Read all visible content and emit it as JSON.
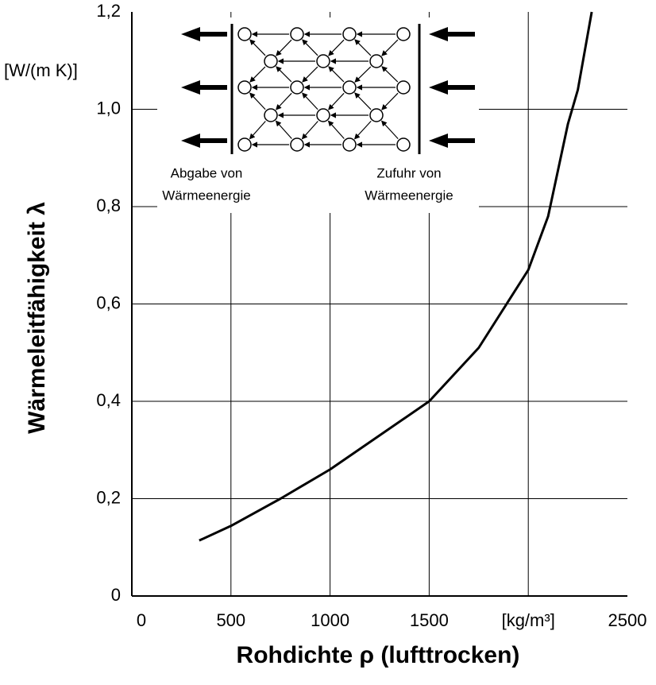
{
  "chart_data": {
    "type": "line",
    "x_label": "Rohdichte ρ (lufttrocken)",
    "y_label": "Wärmeleitfähigkeit λ",
    "y_unit": "[W/(m K)]",
    "annotations": [
      "Abgabe von",
      "Wärmeenergie",
      "Zufuhr von",
      "Wärmeenergie"
    ],
    "x": [
      340,
      500,
      750,
      1000,
      1250,
      1500,
      1750,
      2000,
      2100,
      2200,
      2250,
      2320
    ],
    "series": [
      {
        "color": "#000000",
        "values": [
          0.114,
          0.144,
          0.2,
          0.26,
          0.33,
          0.4,
          0.51,
          0.67,
          0.78,
          0.97,
          1.04,
          1.2
        ]
      }
    ],
    "xlim": [
      0,
      2500
    ],
    "xticks": [
      0,
      500,
      1000,
      1500,
      {
        "value": 2000,
        "label": "[kg/m³]"
      },
      2500
    ],
    "ylim": [
      0,
      1.2
    ],
    "yticks": [
      0,
      {
        "value": 0.2,
        "label": "0,2"
      },
      {
        "value": 0.4,
        "label": "0,4"
      },
      {
        "value": 0.6,
        "label": "0,6"
      },
      {
        "value": 0.8,
        "label": "0,8"
      },
      {
        "value": 1.0,
        "label": "1,0"
      },
      {
        "value": 1.2,
        "label": "1,2"
      }
    ],
    "grid": true
  }
}
